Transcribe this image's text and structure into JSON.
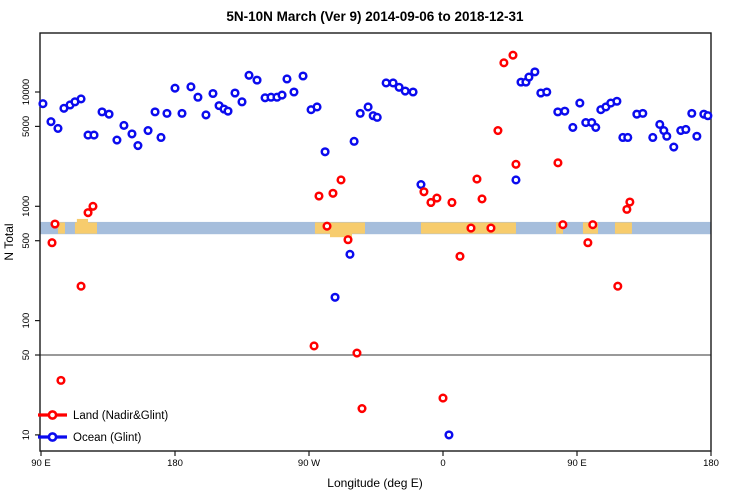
{
  "chart_data": {
    "type": "scatter",
    "title": "5N-10N March (Ver 9)   2014-09-06 to 2018-12-31",
    "xlabel": "Longitude (deg E)",
    "ylabel": "N Total",
    "x_axis": {
      "wrapped_longitude": true,
      "range_axis_deg": [
        90,
        540
      ],
      "ticks": [
        {
          "pos": 90,
          "label": "90 E"
        },
        {
          "pos": 180,
          "label": "180"
        },
        {
          "pos": 270,
          "label": "90 W"
        },
        {
          "pos": 360,
          "label": "0"
        },
        {
          "pos": 450,
          "label": "90 E"
        },
        {
          "pos": 540,
          "label": "180"
        }
      ]
    },
    "y_axis": {
      "scale": "log10",
      "ylim": [
        7.2,
        33000
      ],
      "ticks": [
        {
          "value": 10,
          "label": "10"
        },
        {
          "value": 50,
          "label": "50"
        },
        {
          "value": 100,
          "label": "100"
        },
        {
          "value": 500,
          "label": "500"
        },
        {
          "value": 1000,
          "label": "1000"
        },
        {
          "value": 5000,
          "label": "5000"
        },
        {
          "value": 10000,
          "label": "10000"
        }
      ]
    },
    "reference_line": {
      "value": 50,
      "color": "#333333"
    },
    "map_band": {
      "description": "5N-10N world-map strip; ocean blue band with tan land segments",
      "n_range": [
        570,
        730
      ],
      "ocean_color": "#A6BEDC",
      "land_color": "#F7CC6D",
      "land_segments_deg": [
        [
          101.4,
          106.1
        ],
        [
          112.8,
          127.6
        ],
        [
          274.0,
          307.6
        ],
        [
          345.2,
          409.0
        ],
        [
          435.9,
          440.6
        ],
        [
          454.0,
          464.1
        ],
        [
          475.5,
          486.9
        ]
      ],
      "land_bump_above_deg": [
        114.1,
        121.6
      ],
      "land_tail_below_deg": [
        284.1,
        298.9
      ]
    },
    "legend": {
      "position": "bottom-left"
    },
    "series": [
      {
        "name": "Land (Nadir&Glint)",
        "color": "#FF0000",
        "points": [
          [
            124.9,
            1000
          ],
          [
            121.6,
            880
          ],
          [
            99.4,
            700
          ],
          [
            97.4,
            480
          ],
          [
            116.9,
            200
          ],
          [
            103.4,
            30
          ],
          [
            273.4,
            60
          ],
          [
            302.2,
            52
          ],
          [
            305.6,
            17
          ],
          [
            360,
            21
          ],
          [
            276.7,
            1230
          ],
          [
            286.1,
            1300
          ],
          [
            291.5,
            1700
          ],
          [
            282.1,
            670
          ],
          [
            296.2,
            510
          ],
          [
            347.2,
            1340
          ],
          [
            351.9,
            1080
          ],
          [
            355.9,
            1180
          ],
          [
            366,
            1080
          ],
          [
            371.4,
            365
          ],
          [
            378.8,
            645
          ],
          [
            382.8,
            1730
          ],
          [
            386.2,
            1160
          ],
          [
            392.2,
            645
          ],
          [
            396.9,
            4600
          ],
          [
            400.9,
            18000
          ],
          [
            407,
            21000
          ],
          [
            409,
            2330
          ],
          [
            437.2,
            2400
          ],
          [
            440.5,
            690
          ],
          [
            457.3,
            480
          ],
          [
            460.6,
            690
          ],
          [
            477.4,
            200
          ],
          [
            483.5,
            940
          ],
          [
            485.5,
            1090
          ]
        ]
      },
      {
        "name": "Ocean (Glint)",
        "color": "#0B0BEE",
        "points": [
          [
            91.3,
            7900
          ],
          [
            96.7,
            5500
          ],
          [
            101.4,
            4800
          ],
          [
            105.4,
            7200
          ],
          [
            109.5,
            7700
          ],
          [
            112.8,
            8200
          ],
          [
            116.9,
            8700
          ],
          [
            121.6,
            4200
          ],
          [
            125.6,
            4200
          ],
          [
            131,
            6700
          ],
          [
            135.7,
            6400
          ],
          [
            141,
            3800
          ],
          [
            145.7,
            5100
          ],
          [
            151.1,
            4300
          ],
          [
            155.1,
            3400
          ],
          [
            161.9,
            4600
          ],
          [
            166.6,
            6700
          ],
          [
            170.6,
            4000
          ],
          [
            174.6,
            6500
          ],
          [
            180,
            10800
          ],
          [
            184.7,
            6500
          ],
          [
            190.7,
            11100
          ],
          [
            195.4,
            9000
          ],
          [
            200.8,
            6300
          ],
          [
            205.5,
            9700
          ],
          [
            209.6,
            7600
          ],
          [
            212.9,
            7100
          ],
          [
            215.6,
            6800
          ],
          [
            220.3,
            9800
          ],
          [
            225,
            8200
          ],
          [
            229.7,
            14000
          ],
          [
            235.1,
            12700
          ],
          [
            240.5,
            8900
          ],
          [
            244.5,
            9000
          ],
          [
            248.5,
            9000
          ],
          [
            251.9,
            9400
          ],
          [
            255.2,
            13000
          ],
          [
            259.9,
            10000
          ],
          [
            266,
            13800
          ],
          [
            271.4,
            7000
          ],
          [
            275.4,
            7400
          ],
          [
            280.8,
            3000
          ],
          [
            287.5,
            160
          ],
          [
            297.5,
            380
          ],
          [
            300.3,
            3700
          ],
          [
            304.4,
            6500
          ],
          [
            309.7,
            7400
          ],
          [
            313.1,
            6200
          ],
          [
            315.8,
            6000
          ],
          [
            321.8,
            12000
          ],
          [
            326.5,
            12000
          ],
          [
            330.5,
            11000
          ],
          [
            334.6,
            10200
          ],
          [
            339.9,
            10000
          ],
          [
            345.2,
            1550
          ],
          [
            364,
            10
          ],
          [
            409,
            1700
          ],
          [
            412.4,
            12200
          ],
          [
            415.7,
            12200
          ],
          [
            417.7,
            13500
          ],
          [
            421.7,
            15000
          ],
          [
            425.7,
            9800
          ],
          [
            429.7,
            10000
          ],
          [
            437.1,
            6700
          ],
          [
            441.8,
            6800
          ],
          [
            447.2,
            4900
          ],
          [
            451.9,
            8000
          ],
          [
            455.9,
            5400
          ],
          [
            459.9,
            5400
          ],
          [
            462.6,
            4900
          ],
          [
            466,
            7000
          ],
          [
            469.4,
            7400
          ],
          [
            472.7,
            8000
          ],
          [
            476.8,
            8300
          ],
          [
            480.8,
            4000
          ],
          [
            484.1,
            4000
          ],
          [
            490.2,
            6400
          ],
          [
            494.2,
            6500
          ],
          [
            500.9,
            4000
          ],
          [
            505.6,
            5200
          ],
          [
            508.3,
            4600
          ],
          [
            510.3,
            4100
          ],
          [
            515,
            3300
          ],
          [
            519.7,
            4600
          ],
          [
            523.1,
            4700
          ],
          [
            527.1,
            6500
          ],
          [
            530.5,
            4100
          ],
          [
            535.2,
            6400
          ],
          [
            537.9,
            6200
          ]
        ]
      }
    ]
  }
}
